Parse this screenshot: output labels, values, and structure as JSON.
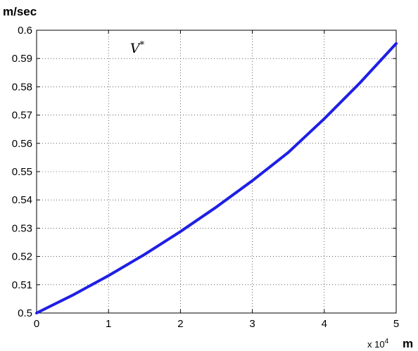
{
  "chart_data": {
    "type": "line",
    "ylabel": "m/sec",
    "xlabel": "m",
    "x_multiplier": {
      "prefix": "x 10",
      "exponent": "4"
    },
    "xlim": [
      0,
      5
    ],
    "ylim": [
      0.5,
      0.6
    ],
    "x_ticks": [
      "0",
      "1",
      "2",
      "3",
      "4",
      "5"
    ],
    "y_ticks": [
      "0.5",
      "0.51",
      "0.52",
      "0.53",
      "0.54",
      "0.55",
      "0.56",
      "0.57",
      "0.58",
      "0.59",
      "0.6"
    ],
    "grid": true,
    "annotation": {
      "text": "V*",
      "x": 1.3,
      "y": 0.594
    },
    "series": [
      {
        "color": "#1f1fe6",
        "x": [
          0,
          0.5,
          1,
          1.5,
          2,
          2.5,
          3,
          3.5,
          4,
          4.5,
          5
        ],
        "y": [
          0.5,
          0.5063,
          0.5132,
          0.5207,
          0.5288,
          0.5375,
          0.5468,
          0.5568,
          0.5687,
          0.5815,
          0.5953
        ]
      }
    ]
  }
}
